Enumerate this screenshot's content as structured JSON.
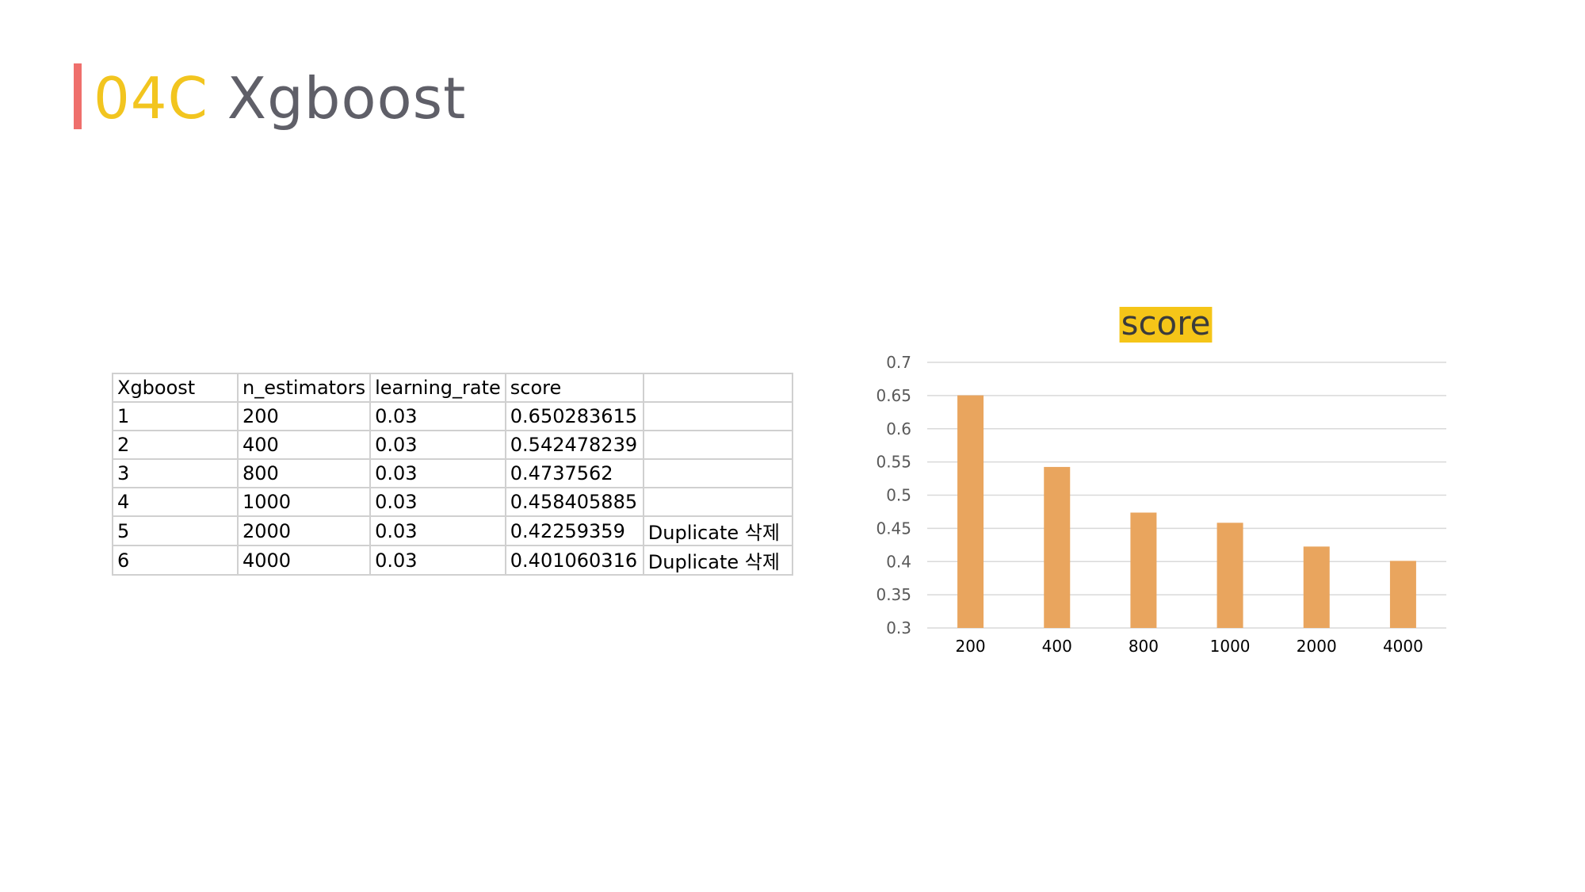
{
  "page": {
    "title_code": "04C",
    "title_name": "Xgboost",
    "colors": {
      "accent_bar": "#ef6f6c",
      "title_code": "#f2c51f",
      "title_name": "#5f5f68",
      "bar_fill": "#e9a55e",
      "chart_title_highlight": "#f5c518"
    }
  },
  "table": {
    "headers": [
      "Xgboost",
      "n_estimators",
      "learning_rate",
      "score",
      ""
    ],
    "rows": [
      [
        "1",
        "200",
        "0.03",
        "0.650283615",
        ""
      ],
      [
        "2",
        "400",
        "0.03",
        "0.542478239",
        ""
      ],
      [
        "3",
        "800",
        "0.03",
        "0.4737562",
        ""
      ],
      [
        "4",
        "1000",
        "0.03",
        "0.458405885",
        ""
      ],
      [
        "5",
        "2000",
        "0.03",
        "0.42259359",
        "Duplicate 삭제"
      ],
      [
        "6",
        "4000",
        "0.03",
        "0.401060316",
        "Duplicate 삭제"
      ]
    ]
  },
  "chart_data": {
    "type": "bar",
    "title": "score",
    "xlabel": "",
    "ylabel": "",
    "categories": [
      "200",
      "400",
      "800",
      "1000",
      "2000",
      "4000"
    ],
    "values": [
      0.650283615,
      0.542478239,
      0.4737562,
      0.458405885,
      0.42259359,
      0.401060316
    ],
    "ylim": [
      0.3,
      0.7
    ],
    "yticks": [
      "0.3",
      "0.35",
      "0.4",
      "0.45",
      "0.5",
      "0.55",
      "0.6",
      "0.65",
      "0.7"
    ],
    "grid": true,
    "legend": "none"
  }
}
